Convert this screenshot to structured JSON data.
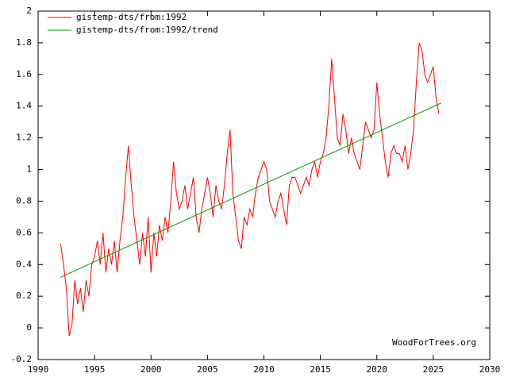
{
  "chart_data": {
    "type": "line",
    "series": [
      {
        "name": "gistemp-dts/from:1992",
        "color": "#ff0000",
        "x": [
          1992,
          1992.25,
          1992.5,
          1992.75,
          1993,
          1993.25,
          1993.5,
          1993.75,
          1994,
          1994.25,
          1994.5,
          1994.75,
          1995,
          1995.25,
          1995.5,
          1995.75,
          1996,
          1996.25,
          1996.5,
          1996.75,
          1997,
          1997.25,
          1997.5,
          1997.75,
          1998,
          1998.25,
          1998.5,
          1998.75,
          1999,
          1999.25,
          1999.5,
          1999.75,
          2000,
          2000.25,
          2000.5,
          2000.75,
          2001,
          2001.25,
          2001.5,
          2001.75,
          2002,
          2002.25,
          2002.5,
          2002.75,
          2003,
          2003.25,
          2003.5,
          2003.75,
          2004,
          2004.25,
          2004.5,
          2004.75,
          2005,
          2005.25,
          2005.5,
          2005.75,
          2006,
          2006.25,
          2006.5,
          2006.75,
          2007,
          2007.25,
          2007.5,
          2007.75,
          2008,
          2008.25,
          2008.5,
          2008.75,
          2009,
          2009.25,
          2009.5,
          2009.75,
          2010,
          2010.25,
          2010.5,
          2010.75,
          2011,
          2011.25,
          2011.5,
          2011.75,
          2012,
          2012.25,
          2012.5,
          2012.75,
          2013,
          2013.25,
          2013.5,
          2013.75,
          2014,
          2014.25,
          2014.5,
          2014.75,
          2015,
          2015.25,
          2015.5,
          2015.75,
          2016,
          2016.25,
          2016.5,
          2016.75,
          2017,
          2017.25,
          2017.5,
          2017.75,
          2018,
          2018.25,
          2018.5,
          2018.75,
          2019,
          2019.25,
          2019.5,
          2019.75,
          2020,
          2020.25,
          2020.5,
          2020.75,
          2021,
          2021.25,
          2021.5,
          2021.75,
          2022,
          2022.25,
          2022.5,
          2022.75,
          2023,
          2023.25,
          2023.5,
          2023.75,
          2024,
          2024.25,
          2024.5,
          2024.75,
          2025,
          2025.25,
          2025.5
        ],
        "values": [
          0.53,
          0.4,
          0.25,
          -0.05,
          0.02,
          0.3,
          0.15,
          0.25,
          0.1,
          0.3,
          0.2,
          0.4,
          0.45,
          0.55,
          0.4,
          0.6,
          0.35,
          0.5,
          0.4,
          0.55,
          0.35,
          0.55,
          0.7,
          0.95,
          1.15,
          0.9,
          0.7,
          0.55,
          0.4,
          0.6,
          0.45,
          0.7,
          0.35,
          0.6,
          0.45,
          0.65,
          0.55,
          0.7,
          0.6,
          0.8,
          1.05,
          0.85,
          0.75,
          0.8,
          0.9,
          0.75,
          0.85,
          0.95,
          0.7,
          0.6,
          0.75,
          0.85,
          0.95,
          0.85,
          0.7,
          0.9,
          0.8,
          0.75,
          0.9,
          1.1,
          1.25,
          0.85,
          0.7,
          0.55,
          0.5,
          0.7,
          0.65,
          0.75,
          0.7,
          0.85,
          0.95,
          1.0,
          1.05,
          1.0,
          0.8,
          0.75,
          0.7,
          0.8,
          0.85,
          0.75,
          0.65,
          0.9,
          0.95,
          0.95,
          0.9,
          0.85,
          0.9,
          0.95,
          0.9,
          1.0,
          1.05,
          0.95,
          1.05,
          1.1,
          1.2,
          1.4,
          1.7,
          1.45,
          1.2,
          1.15,
          1.35,
          1.25,
          1.1,
          1.2,
          1.1,
          1.05,
          1.0,
          1.15,
          1.3,
          1.25,
          1.2,
          1.25,
          1.55,
          1.35,
          1.2,
          1.05,
          0.95,
          1.1,
          1.15,
          1.1,
          1.1,
          1.05,
          1.15,
          1.0,
          1.1,
          1.25,
          1.55,
          1.8,
          1.75,
          1.6,
          1.55,
          1.6,
          1.65,
          1.45,
          1.35
        ]
      },
      {
        "name": "gistemp-dts/from:1992/trend",
        "color": "#00a000",
        "x": [
          1992,
          2025.7
        ],
        "values": [
          0.32,
          1.42
        ]
      }
    ],
    "xlim": [
      1990,
      2030
    ],
    "xticks": [
      1990,
      1995,
      2000,
      2005,
      2010,
      2015,
      2020,
      2025,
      2030
    ],
    "ylim": [
      -0.2,
      2
    ],
    "yticks": [
      -0.2,
      0,
      0.2,
      0.4,
      0.6,
      0.8,
      1,
      1.2,
      1.4,
      1.6,
      1.8,
      2
    ],
    "annotation": "WoodForTrees.org",
    "legend": "top-left"
  }
}
